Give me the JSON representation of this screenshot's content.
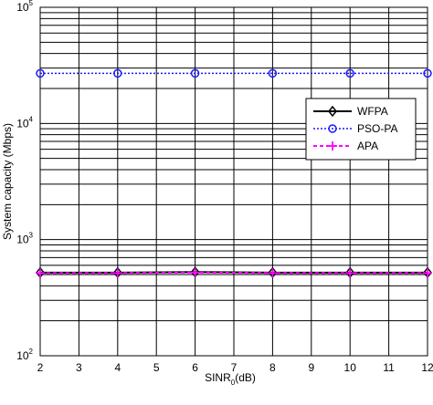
{
  "chart_data": {
    "type": "line",
    "title": "",
    "xlabel": {
      "base": "SINR",
      "sub": "0",
      "unit": "(dB)"
    },
    "ylabel": "System capacity (Mbps)",
    "xlim": [
      2,
      12
    ],
    "ylim": [
      100,
      100000
    ],
    "yscale": "log",
    "grid": true,
    "legend_position": "right",
    "x_ticks": [
      2,
      3,
      4,
      5,
      6,
      7,
      8,
      9,
      10,
      11,
      12
    ],
    "y_ticks": [
      {
        "base": "10",
        "exp": "2",
        "value": 100
      },
      {
        "base": "10",
        "exp": "3",
        "value": 1000
      },
      {
        "base": "10",
        "exp": "4",
        "value": 10000
      },
      {
        "base": "10",
        "exp": "5",
        "value": 100000
      }
    ],
    "x": [
      2,
      4,
      6,
      8,
      10,
      12
    ],
    "series": [
      {
        "name": "WFPA",
        "color": "#000000",
        "marker": "diamond",
        "line": "solid",
        "values": [
          520,
          520,
          525,
          520,
          520,
          520
        ]
      },
      {
        "name": "PSO-PA",
        "color": "#1a1aff",
        "marker": "circle",
        "line": "dotted",
        "values": [
          27000,
          27000,
          27000,
          27000,
          27000,
          27000
        ]
      },
      {
        "name": "APA",
        "color": "#ff00ff",
        "marker": "plus",
        "line": "dashed",
        "values": [
          515,
          515,
          520,
          515,
          515,
          515
        ]
      }
    ]
  }
}
